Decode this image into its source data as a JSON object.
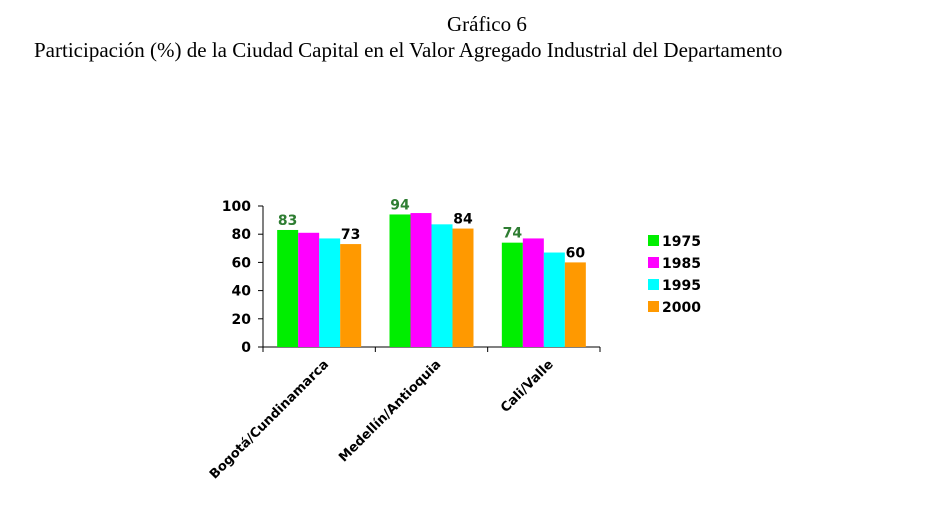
{
  "header": {
    "figure_number": "Gráfico 6",
    "title": "Participación (%) de la Ciudad Capital en el Valor Agregado Industrial del Departamento"
  },
  "chart_data": {
    "type": "bar",
    "title": "Participación (%) de la Ciudad Capital en el Valor Agregado Industrial del Departamento",
    "xlabel": "",
    "ylabel": "",
    "ylim": [
      0,
      100
    ],
    "yticks": [
      "0",
      "20",
      "40",
      "60",
      "80",
      "100"
    ],
    "grid": false,
    "legend_position": "right",
    "categories": [
      "Bogotá/Cundinamarca",
      "Medellín/Antioquia",
      "Cali/Valle"
    ],
    "series": [
      {
        "name": "1975",
        "color": "#00ee00",
        "values": [
          83,
          94,
          74
        ],
        "labels": [
          "83",
          "94",
          "74"
        ],
        "label_color": "#2e7d32"
      },
      {
        "name": "1985",
        "color": "#ff00ff",
        "values": [
          81,
          95,
          77
        ],
        "labels": [
          null,
          null,
          null
        ]
      },
      {
        "name": "1995",
        "color": "#00ffff",
        "values": [
          77,
          87,
          67
        ],
        "labels": [
          null,
          null,
          null
        ]
      },
      {
        "name": "2000",
        "color": "#ff9900",
        "values": [
          73,
          84,
          60
        ],
        "labels": [
          "73",
          "84",
          "60"
        ],
        "label_color": "#000000"
      }
    ]
  }
}
